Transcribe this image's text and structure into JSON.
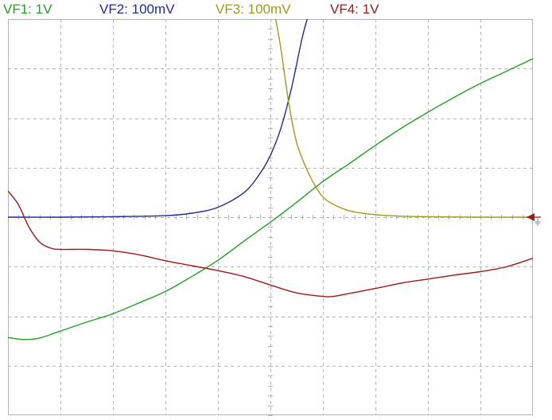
{
  "colors": {
    "vf1": "#22a022",
    "vf2": "#1f2a9c",
    "vf3": "#9e9a20",
    "vf4": "#a01818",
    "grid": "#b4b4b4",
    "marker": "#a01818"
  },
  "legend": [
    {
      "label": "VF1: 1V",
      "color": "#22a022"
    },
    {
      "label": "VF2: 100mV",
      "color": "#1f2a9c"
    },
    {
      "label": "VF3: 100mV",
      "color": "#9e9a20"
    },
    {
      "label": "VF4: 1V",
      "color": "#a01818"
    }
  ],
  "ground_marker_icon": "ground-marker-icon",
  "chart_data": {
    "type": "line",
    "x_divisions": 10,
    "y_divisions": 8,
    "xlim": [
      -5,
      5
    ],
    "ylim": [
      -4,
      4
    ],
    "grid": true,
    "ground_level": 0,
    "series": [
      {
        "name": "VF1: 1V",
        "color": "#22a022",
        "points": [
          [
            -5,
            -2.43
          ],
          [
            -4.7,
            -2.47
          ],
          [
            -4.4,
            -2.44
          ],
          [
            -4,
            -2.3
          ],
          [
            -3.5,
            -2.12
          ],
          [
            -3,
            -1.95
          ],
          [
            -2.5,
            -1.73
          ],
          [
            -2,
            -1.5
          ],
          [
            -1.5,
            -1.2
          ],
          [
            -1,
            -0.87
          ],
          [
            -0.5,
            -0.48
          ],
          [
            0,
            -0.1
          ],
          [
            0.5,
            0.3
          ],
          [
            1,
            0.72
          ],
          [
            1.5,
            1.08
          ],
          [
            2,
            1.45
          ],
          [
            2.5,
            1.8
          ],
          [
            3,
            2.12
          ],
          [
            3.5,
            2.42
          ],
          [
            4,
            2.7
          ],
          [
            4.5,
            2.95
          ],
          [
            5,
            3.2
          ]
        ]
      },
      {
        "name": "VF2: 100mV",
        "color": "#1f2a9c",
        "points": [
          [
            -5,
            0
          ],
          [
            -4,
            0
          ],
          [
            -3,
            0.01
          ],
          [
            -2,
            0.03
          ],
          [
            -1.5,
            0.08
          ],
          [
            -1,
            0.2
          ],
          [
            -0.5,
            0.5
          ],
          [
            -0.2,
            0.88
          ],
          [
            0,
            1.25
          ],
          [
            0.2,
            1.8
          ],
          [
            0.4,
            2.6
          ],
          [
            0.6,
            3.6
          ],
          [
            0.7,
            4
          ]
        ]
      },
      {
        "name": "VF3: 100mV",
        "color": "#9e9a20",
        "points": [
          [
            0.1,
            4
          ],
          [
            0.2,
            3.4
          ],
          [
            0.35,
            2.3
          ],
          [
            0.5,
            1.5
          ],
          [
            0.7,
            0.95
          ],
          [
            0.9,
            0.55
          ],
          [
            1.1,
            0.32
          ],
          [
            1.5,
            0.13
          ],
          [
            2,
            0.05
          ],
          [
            2.5,
            0.02
          ],
          [
            3,
            0.01
          ],
          [
            4,
            0
          ],
          [
            5,
            0
          ]
        ]
      },
      {
        "name": "VF4: 1V",
        "color": "#a01818",
        "points": [
          [
            -5,
            0.53
          ],
          [
            -4.8,
            0.25
          ],
          [
            -4.6,
            -0.2
          ],
          [
            -4.4,
            -0.5
          ],
          [
            -4.2,
            -0.62
          ],
          [
            -4,
            -0.65
          ],
          [
            -3.5,
            -0.65
          ],
          [
            -3,
            -0.68
          ],
          [
            -2.5,
            -0.76
          ],
          [
            -2,
            -0.88
          ],
          [
            -1.5,
            -0.98
          ],
          [
            -1,
            -1.08
          ],
          [
            -0.5,
            -1.2
          ],
          [
            0,
            -1.37
          ],
          [
            0.5,
            -1.53
          ],
          [
            1,
            -1.6
          ],
          [
            1.2,
            -1.6
          ],
          [
            1.5,
            -1.54
          ],
          [
            2,
            -1.44
          ],
          [
            2.5,
            -1.33
          ],
          [
            3,
            -1.25
          ],
          [
            3.5,
            -1.17
          ],
          [
            4,
            -1.1
          ],
          [
            4.5,
            -1.0
          ],
          [
            5,
            -0.83
          ]
        ]
      }
    ]
  }
}
